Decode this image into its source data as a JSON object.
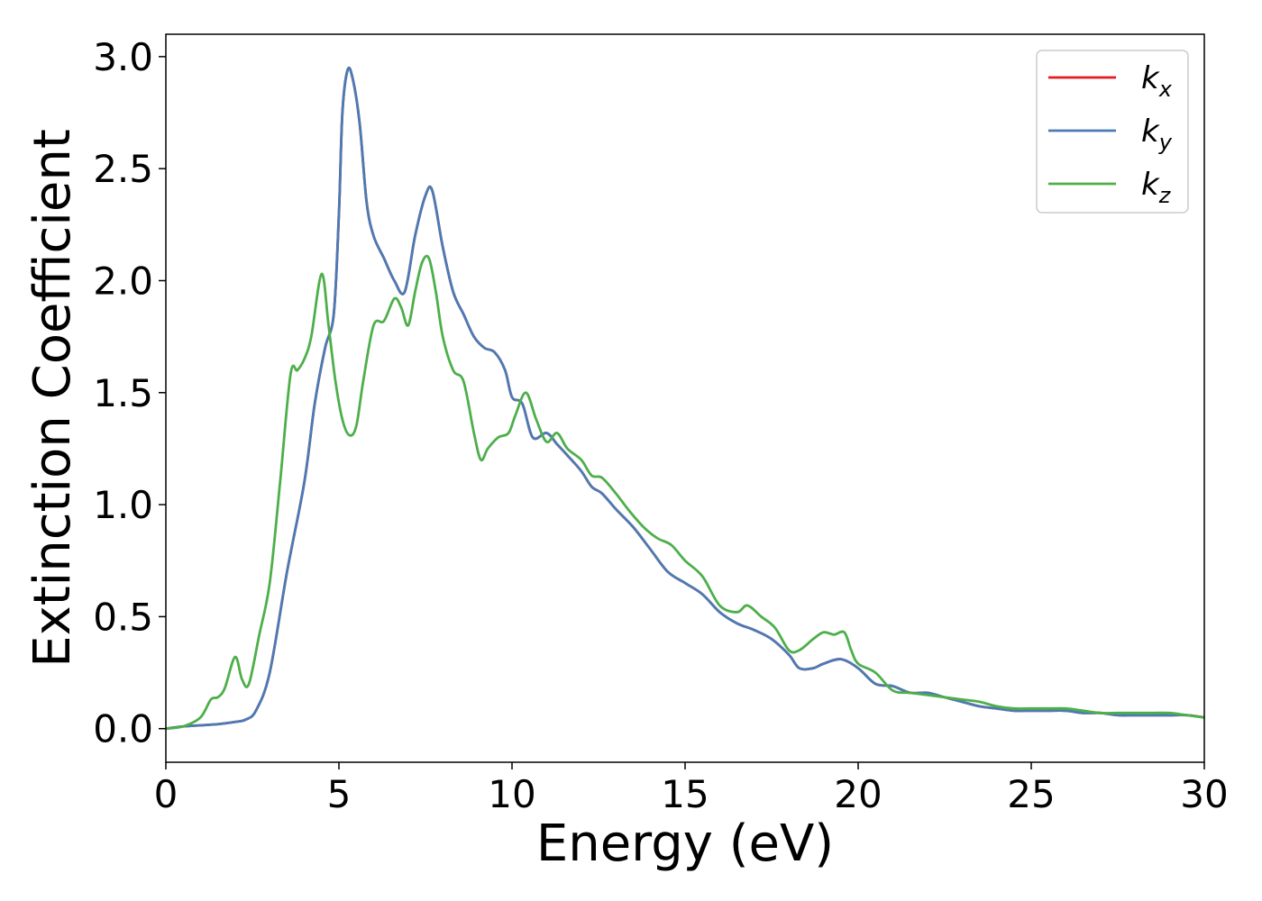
{
  "chart_data": {
    "type": "line",
    "xlabel": "Energy (eV)",
    "ylabel": "Extinction Coefficient",
    "xlim": [
      0,
      30
    ],
    "ylim": [
      -0.15,
      3.1
    ],
    "xticks": [
      0,
      5,
      10,
      15,
      20,
      25,
      30
    ],
    "xtick_labels": [
      "0",
      "5",
      "10",
      "15",
      "20",
      "25",
      "30"
    ],
    "yticks": [
      0.0,
      0.5,
      1.0,
      1.5,
      2.0,
      2.5,
      3.0
    ],
    "ytick_labels": [
      "0.0",
      "0.5",
      "1.0",
      "1.5",
      "2.0",
      "2.5",
      "3.0"
    ],
    "grid": false,
    "legend_position": "top-right",
    "series": [
      {
        "name": "k_x",
        "legend_base": "k",
        "legend_sub": "x",
        "color": "#e41a1c",
        "x": [
          0,
          0.5,
          1,
          1.5,
          2,
          2.3,
          2.6,
          3,
          3.5,
          4,
          4.3,
          4.6,
          4.85,
          5.0,
          5.1,
          5.25,
          5.4,
          5.6,
          5.8,
          6.0,
          6.3,
          6.6,
          6.9,
          7.2,
          7.5,
          7.7,
          8.0,
          8.3,
          8.6,
          8.9,
          9.2,
          9.5,
          9.8,
          10.0,
          10.3,
          10.6,
          11.0,
          11.3,
          11.6,
          12.0,
          12.3,
          12.6,
          13.0,
          13.5,
          14.0,
          14.5,
          15.0,
          15.5,
          16.0,
          16.5,
          17.0,
          17.5,
          18.0,
          18.3,
          18.7,
          19.0,
          19.5,
          20.0,
          20.5,
          21.0,
          21.5,
          22.0,
          22.5,
          23.0,
          23.5,
          24.0,
          24.5,
          25.0,
          25.5,
          26.0,
          26.5,
          27.0,
          27.5,
          28.0,
          28.5,
          29.0,
          29.5,
          30.0
        ],
        "y": [
          0.0,
          0.01,
          0.015,
          0.02,
          0.03,
          0.04,
          0.08,
          0.25,
          0.7,
          1.1,
          1.45,
          1.7,
          1.85,
          2.3,
          2.75,
          2.94,
          2.9,
          2.7,
          2.35,
          2.2,
          2.1,
          2.0,
          1.95,
          2.2,
          2.38,
          2.4,
          2.15,
          1.95,
          1.85,
          1.75,
          1.7,
          1.68,
          1.6,
          1.48,
          1.45,
          1.3,
          1.32,
          1.27,
          1.22,
          1.15,
          1.08,
          1.05,
          0.98,
          0.9,
          0.8,
          0.7,
          0.65,
          0.6,
          0.52,
          0.47,
          0.44,
          0.4,
          0.33,
          0.27,
          0.27,
          0.29,
          0.31,
          0.27,
          0.2,
          0.19,
          0.16,
          0.16,
          0.14,
          0.12,
          0.1,
          0.09,
          0.08,
          0.08,
          0.08,
          0.08,
          0.07,
          0.07,
          0.06,
          0.06,
          0.06,
          0.06,
          0.06,
          0.05
        ]
      },
      {
        "name": "k_y",
        "legend_base": "k",
        "legend_sub": "y",
        "color": "#4a7bb5",
        "x": [
          0,
          0.5,
          1,
          1.5,
          2,
          2.3,
          2.6,
          3,
          3.5,
          4,
          4.3,
          4.6,
          4.85,
          5.0,
          5.1,
          5.25,
          5.4,
          5.6,
          5.8,
          6.0,
          6.3,
          6.6,
          6.9,
          7.2,
          7.5,
          7.7,
          8.0,
          8.3,
          8.6,
          8.9,
          9.2,
          9.5,
          9.8,
          10.0,
          10.3,
          10.6,
          11.0,
          11.3,
          11.6,
          12.0,
          12.3,
          12.6,
          13.0,
          13.5,
          14.0,
          14.5,
          15.0,
          15.5,
          16.0,
          16.5,
          17.0,
          17.5,
          18.0,
          18.3,
          18.7,
          19.0,
          19.5,
          20.0,
          20.5,
          21.0,
          21.5,
          22.0,
          22.5,
          23.0,
          23.5,
          24.0,
          24.5,
          25.0,
          25.5,
          26.0,
          26.5,
          27.0,
          27.5,
          28.0,
          28.5,
          29.0,
          29.5,
          30.0
        ],
        "y": [
          0.0,
          0.01,
          0.015,
          0.02,
          0.03,
          0.04,
          0.08,
          0.25,
          0.7,
          1.1,
          1.45,
          1.7,
          1.85,
          2.3,
          2.75,
          2.94,
          2.9,
          2.7,
          2.35,
          2.2,
          2.1,
          2.0,
          1.95,
          2.2,
          2.38,
          2.4,
          2.15,
          1.95,
          1.85,
          1.75,
          1.7,
          1.68,
          1.6,
          1.48,
          1.45,
          1.3,
          1.32,
          1.27,
          1.22,
          1.15,
          1.08,
          1.05,
          0.98,
          0.9,
          0.8,
          0.7,
          0.65,
          0.6,
          0.52,
          0.47,
          0.44,
          0.4,
          0.33,
          0.27,
          0.27,
          0.29,
          0.31,
          0.27,
          0.2,
          0.19,
          0.16,
          0.16,
          0.14,
          0.12,
          0.1,
          0.09,
          0.08,
          0.08,
          0.08,
          0.08,
          0.07,
          0.07,
          0.06,
          0.06,
          0.06,
          0.06,
          0.06,
          0.05
        ]
      },
      {
        "name": "k_z",
        "legend_base": "k",
        "legend_sub": "z",
        "color": "#4daf4a",
        "x": [
          0,
          0.5,
          1,
          1.3,
          1.5,
          1.7,
          2.0,
          2.2,
          2.4,
          2.7,
          3.0,
          3.3,
          3.6,
          3.8,
          4.0,
          4.2,
          4.5,
          4.7,
          4.9,
          5.1,
          5.3,
          5.5,
          5.7,
          6.0,
          6.3,
          6.6,
          6.8,
          7.0,
          7.2,
          7.4,
          7.6,
          7.8,
          8.0,
          8.3,
          8.6,
          8.9,
          9.1,
          9.3,
          9.6,
          9.9,
          10.1,
          10.4,
          10.7,
          11.0,
          11.3,
          11.6,
          12.0,
          12.3,
          12.6,
          13.0,
          13.4,
          13.8,
          14.2,
          14.6,
          15.0,
          15.5,
          16.0,
          16.5,
          16.8,
          17.2,
          17.6,
          18.0,
          18.3,
          18.7,
          19.0,
          19.3,
          19.6,
          19.8,
          20.0,
          20.5,
          21.0,
          21.5,
          22.0,
          22.5,
          23.0,
          23.5,
          24.0,
          24.5,
          25.0,
          25.5,
          26.0,
          26.5,
          27.0,
          27.5,
          28.0,
          28.5,
          29.0,
          29.5,
          30.0
        ],
        "y": [
          0.0,
          0.01,
          0.05,
          0.13,
          0.14,
          0.18,
          0.32,
          0.22,
          0.2,
          0.42,
          0.65,
          1.1,
          1.58,
          1.6,
          1.65,
          1.75,
          2.03,
          1.8,
          1.55,
          1.38,
          1.31,
          1.35,
          1.55,
          1.8,
          1.82,
          1.92,
          1.88,
          1.8,
          1.95,
          2.08,
          2.1,
          1.95,
          1.75,
          1.6,
          1.55,
          1.32,
          1.2,
          1.25,
          1.3,
          1.32,
          1.4,
          1.5,
          1.38,
          1.28,
          1.32,
          1.25,
          1.2,
          1.13,
          1.12,
          1.05,
          0.97,
          0.9,
          0.85,
          0.82,
          0.75,
          0.68,
          0.55,
          0.52,
          0.55,
          0.5,
          0.45,
          0.35,
          0.35,
          0.4,
          0.43,
          0.42,
          0.43,
          0.35,
          0.29,
          0.25,
          0.17,
          0.16,
          0.15,
          0.14,
          0.13,
          0.12,
          0.1,
          0.09,
          0.09,
          0.09,
          0.09,
          0.08,
          0.07,
          0.07,
          0.07,
          0.07,
          0.07,
          0.06,
          0.05
        ]
      }
    ]
  }
}
